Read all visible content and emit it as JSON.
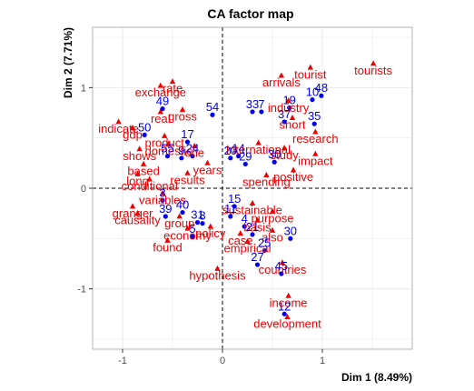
{
  "chart_data": {
    "type": "scatter",
    "title": "CA factor map",
    "xlabel": "Dim 1 (8.49%)",
    "ylabel": "Dim 2 (7.71%)",
    "xlim": [
      -1.3,
      1.9
    ],
    "ylim": [
      -1.6,
      1.6
    ],
    "x_ticks": [
      -1,
      0,
      1
    ],
    "y_ticks": [
      -1,
      0,
      1
    ],
    "reference_lines": {
      "x": 0,
      "y": 0,
      "style": "dashed"
    },
    "grid": true,
    "colors": {
      "rows": "#0000ee",
      "columns": "#ee0000",
      "panel_border": "#b3b3b3",
      "grid": "#ebebeb"
    },
    "row_points": [
      {
        "label": "48",
        "x": 0.99,
        "y": 0.92
      },
      {
        "label": "10",
        "x": 0.9,
        "y": 0.88
      },
      {
        "label": "19",
        "x": 0.67,
        "y": 0.8
      },
      {
        "label": "33",
        "x": 0.3,
        "y": 0.76
      },
      {
        "label": "7",
        "x": 0.39,
        "y": 0.76
      },
      {
        "label": "37",
        "x": 0.62,
        "y": 0.66
      },
      {
        "label": "35",
        "x": 0.92,
        "y": 0.64
      },
      {
        "label": "54",
        "x": -0.1,
        "y": 0.73
      },
      {
        "label": "49",
        "x": -0.6,
        "y": 0.79
      },
      {
        "label": "50",
        "x": -0.78,
        "y": 0.53
      },
      {
        "label": "17",
        "x": -0.35,
        "y": 0.46
      },
      {
        "label": "55",
        "x": -0.55,
        "y": 0.32
      },
      {
        "label": "9",
        "x": -0.41,
        "y": 0.3
      },
      {
        "label": "24",
        "x": -0.3,
        "y": 0.32
      },
      {
        "label": "20",
        "x": 0.08,
        "y": 0.3
      },
      {
        "label": "14",
        "x": 0.16,
        "y": 0.32
      },
      {
        "label": "29",
        "x": 0.23,
        "y": 0.24
      },
      {
        "label": "30",
        "x": 0.52,
        "y": 0.26
      },
      {
        "label": "3",
        "x": -0.6,
        "y": -0.12
      },
      {
        "label": "39",
        "x": -0.57,
        "y": -0.28
      },
      {
        "label": "40",
        "x": -0.4,
        "y": -0.24
      },
      {
        "label": "31",
        "x": -0.25,
        "y": -0.34
      },
      {
        "label": "8",
        "x": -0.2,
        "y": -0.35
      },
      {
        "label": "5",
        "x": -0.3,
        "y": -0.48
      },
      {
        "label": "15",
        "x": 0.12,
        "y": -0.18
      },
      {
        "label": "11",
        "x": 0.08,
        "y": -0.28
      },
      {
        "label": "4",
        "x": 0.22,
        "y": -0.38
      },
      {
        "label": "21",
        "x": 0.3,
        "y": -0.46
      },
      {
        "label": "30",
        "x": 0.68,
        "y": -0.5
      },
      {
        "label": "25",
        "x": 0.42,
        "y": -0.62
      },
      {
        "label": "27",
        "x": 0.35,
        "y": -0.76
      },
      {
        "label": "45",
        "x": 0.59,
        "y": -0.85
      },
      {
        "label": "12",
        "x": 0.62,
        "y": -1.25
      }
    ],
    "column_points": [
      {
        "label": "tourists",
        "x": 1.51,
        "y": 1.24
      },
      {
        "label": "tourist",
        "x": 0.88,
        "y": 1.2
      },
      {
        "label": "arrivals",
        "x": 0.59,
        "y": 1.12
      },
      {
        "label": "industry",
        "x": 0.66,
        "y": 0.87
      },
      {
        "label": "short",
        "x": 0.7,
        "y": 0.7
      },
      {
        "label": "research",
        "x": 0.93,
        "y": 0.56
      },
      {
        "label": "international",
        "x": 0.36,
        "y": 0.45
      },
      {
        "label": "study",
        "x": 0.62,
        "y": 0.4
      },
      {
        "label": "impact",
        "x": 0.93,
        "y": 0.34
      },
      {
        "label": "positive",
        "x": 0.71,
        "y": 0.18
      },
      {
        "label": "spending",
        "x": 0.44,
        "y": 0.13
      },
      {
        "label": "exchange",
        "x": -0.62,
        "y": 1.02
      },
      {
        "label": "rate",
        "x": -0.5,
        "y": 1.06
      },
      {
        "label": "gross",
        "x": -0.4,
        "y": 0.78
      },
      {
        "label": "real",
        "x": -0.62,
        "y": 0.76
      },
      {
        "label": "indicate",
        "x": -1.04,
        "y": 0.66
      },
      {
        "label": "gdp",
        "x": -0.9,
        "y": 0.6
      },
      {
        "label": "product",
        "x": -0.58,
        "y": 0.52
      },
      {
        "label": "domestic",
        "x": -0.54,
        "y": 0.44
      },
      {
        "label": "one",
        "x": -0.28,
        "y": 0.42
      },
      {
        "label": "shows",
        "x": -0.83,
        "y": 0.39
      },
      {
        "label": "based",
        "x": -0.79,
        "y": 0.24
      },
      {
        "label": "long",
        "x": -0.85,
        "y": 0.14
      },
      {
        "label": "conditional",
        "x": -0.73,
        "y": 0.09
      },
      {
        "label": "results",
        "x": -0.35,
        "y": 0.15
      },
      {
        "label": "years",
        "x": -0.15,
        "y": 0.25
      },
      {
        "label": "variables",
        "x": -0.6,
        "y": -0.05
      },
      {
        "label": "granger",
        "x": -0.9,
        "y": -0.18
      },
      {
        "label": "causality",
        "x": -0.85,
        "y": -0.25
      },
      {
        "label": "group",
        "x": -0.43,
        "y": -0.28
      },
      {
        "label": "economy",
        "x": -0.35,
        "y": -0.4
      },
      {
        "label": "policy",
        "x": -0.12,
        "y": -0.38
      },
      {
        "label": "found",
        "x": -0.55,
        "y": -0.52
      },
      {
        "label": "sustainable",
        "x": 0.3,
        "y": -0.15
      },
      {
        "label": "purpose",
        "x": 0.5,
        "y": -0.23
      },
      {
        "label": "basis",
        "x": 0.35,
        "y": -0.32
      },
      {
        "label": "also",
        "x": 0.5,
        "y": -0.42
      },
      {
        "label": "case",
        "x": 0.18,
        "y": -0.45
      },
      {
        "label": "empirical",
        "x": 0.25,
        "y": -0.53
      },
      {
        "label": "countries",
        "x": 0.6,
        "y": -0.74
      },
      {
        "label": "hypothesis",
        "x": -0.05,
        "y": -0.8
      },
      {
        "label": "income",
        "x": 0.66,
        "y": -1.07
      },
      {
        "label": "development",
        "x": 0.65,
        "y": -1.28
      }
    ]
  }
}
